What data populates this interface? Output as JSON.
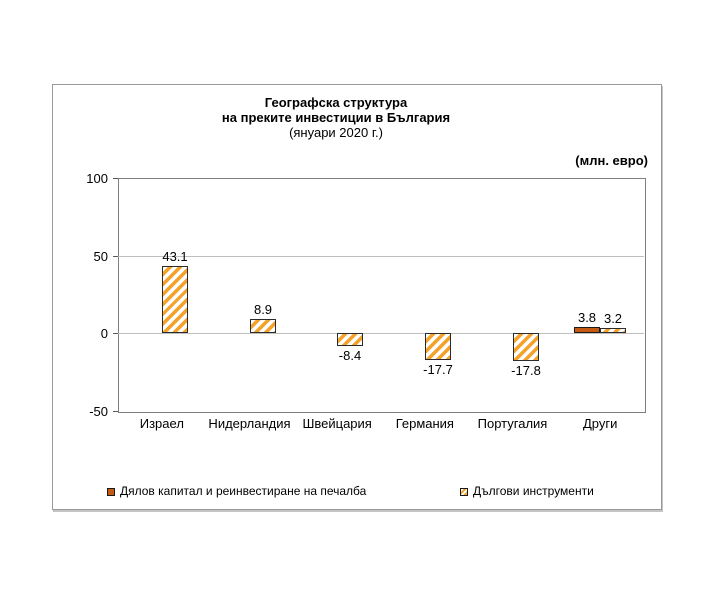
{
  "header": {
    "title_line1": "Географска структура",
    "title_line2": "на преките инвестиции в България",
    "title_line3": "(януари 2020 г.)",
    "unit_label": "(млн. евро)"
  },
  "chart_data": {
    "type": "bar",
    "title": "Географска структура на преките инвестиции в България (януари 2020 г.)",
    "unit": "млн. евро",
    "categories": [
      "Израел",
      "Нидерландия",
      "Швейцария",
      "Германия",
      "Португалия",
      "Други"
    ],
    "series": [
      {
        "name": "Дялов капитал и реинвестиране на печалба",
        "pattern": "solid",
        "color": "#C45911",
        "values": [
          null,
          null,
          null,
          null,
          null,
          3.8
        ]
      },
      {
        "name": "Дългови инструменти",
        "pattern": "hatch",
        "color": "#F4A22A",
        "values": [
          43.1,
          8.9,
          -8.4,
          -17.7,
          -17.8,
          3.2
        ]
      }
    ],
    "ylim": [
      -50,
      100
    ],
    "yticks": [
      100,
      50,
      0,
      -50
    ],
    "grid": true,
    "legend_position": "bottom"
  },
  "colors": {
    "solid_series": "#C45911",
    "hatch_stripe": "#F4A22A",
    "gridline": "#BFBFBF",
    "plot_border": "#808080",
    "frame_border": "#999999"
  }
}
